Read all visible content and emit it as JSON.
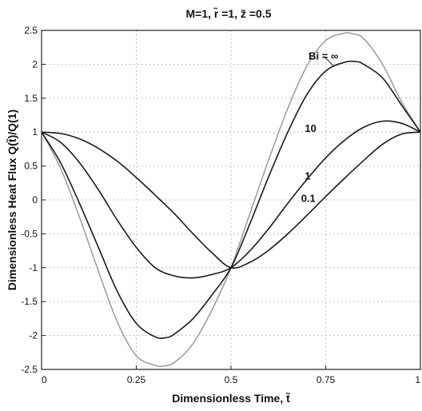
{
  "chart_data": {
    "type": "line",
    "title": "M=1, r̃ =1, z̃ =0.5",
    "xlabel": "Dimensionless Time, t̃",
    "ylabel": "Dimensionless Heat Flux Q(t̃)/Q(1)",
    "xlim": [
      0,
      1
    ],
    "ylim": [
      -2.5,
      2.5
    ],
    "x_ticks": [
      0,
      0.25,
      0.5,
      0.75,
      1
    ],
    "x_tick_labels": [
      "0",
      "0.25",
      "0.5",
      "0.75",
      "1"
    ],
    "y_ticks": [
      -2.5,
      -2,
      -1.5,
      -1,
      -0.5,
      0,
      0.5,
      1,
      1.5,
      2,
      2.5
    ],
    "y_tick_labels": [
      "-2.5",
      "-2",
      "-1.5",
      "-1",
      "-0.5",
      "0",
      "0.5",
      "1",
      "1.5",
      "2",
      "2.5"
    ],
    "grid": true,
    "series": [
      {
        "name": "Bi = ∞",
        "color": "#9a9a9a",
        "x": [
          0,
          0.05,
          0.1,
          0.15,
          0.2,
          0.25,
          0.3,
          0.32,
          0.35,
          0.4,
          0.45,
          0.5,
          0.55,
          0.6,
          0.65,
          0.7,
          0.75,
          0.8,
          0.82,
          0.85,
          0.9,
          0.95,
          1
        ],
        "y": [
          1,
          0.47,
          -0.25,
          -1.05,
          -1.8,
          -2.3,
          -2.44,
          -2.45,
          -2.4,
          -2.12,
          -1.62,
          -1,
          -0.2,
          0.6,
          1.35,
          1.97,
          2.35,
          2.46,
          2.45,
          2.38,
          2.0,
          1.45,
          1
        ]
      },
      {
        "name": "10",
        "color": "#1a1a1a",
        "x": [
          0,
          0.05,
          0.1,
          0.15,
          0.2,
          0.25,
          0.3,
          0.33,
          0.35,
          0.4,
          0.45,
          0.5,
          0.55,
          0.6,
          0.65,
          0.7,
          0.75,
          0.8,
          0.83,
          0.85,
          0.9,
          0.95,
          1
        ],
        "y": [
          1,
          0.55,
          -0.05,
          -0.7,
          -1.35,
          -1.82,
          -2.02,
          -2.03,
          -1.98,
          -1.75,
          -1.4,
          -1,
          -0.35,
          0.35,
          1.0,
          1.55,
          1.9,
          2.03,
          2.04,
          2.0,
          1.8,
          1.4,
          1
        ]
      },
      {
        "name": "1",
        "color": "#1a1a1a",
        "x": [
          0,
          0.05,
          0.1,
          0.15,
          0.2,
          0.25,
          0.3,
          0.35,
          0.4,
          0.45,
          0.5,
          0.55,
          0.6,
          0.65,
          0.7,
          0.75,
          0.8,
          0.85,
          0.9,
          0.95,
          1
        ],
        "y": [
          1,
          0.85,
          0.55,
          0.15,
          -0.3,
          -0.7,
          -1.0,
          -1.12,
          -1.15,
          -1.1,
          -1,
          -0.75,
          -0.42,
          -0.05,
          0.3,
          0.62,
          0.88,
          1.07,
          1.16,
          1.13,
          1
        ]
      },
      {
        "name": "0.1",
        "color": "#1a1a1a",
        "x": [
          0,
          0.05,
          0.1,
          0.15,
          0.2,
          0.25,
          0.3,
          0.35,
          0.4,
          0.45,
          0.5,
          0.55,
          0.6,
          0.65,
          0.7,
          0.75,
          0.8,
          0.85,
          0.9,
          0.95,
          1
        ],
        "y": [
          1,
          0.98,
          0.9,
          0.76,
          0.57,
          0.33,
          0.07,
          -0.2,
          -0.5,
          -0.78,
          -1,
          -0.92,
          -0.74,
          -0.5,
          -0.23,
          0.05,
          0.32,
          0.58,
          0.82,
          0.97,
          1
        ]
      }
    ]
  }
}
